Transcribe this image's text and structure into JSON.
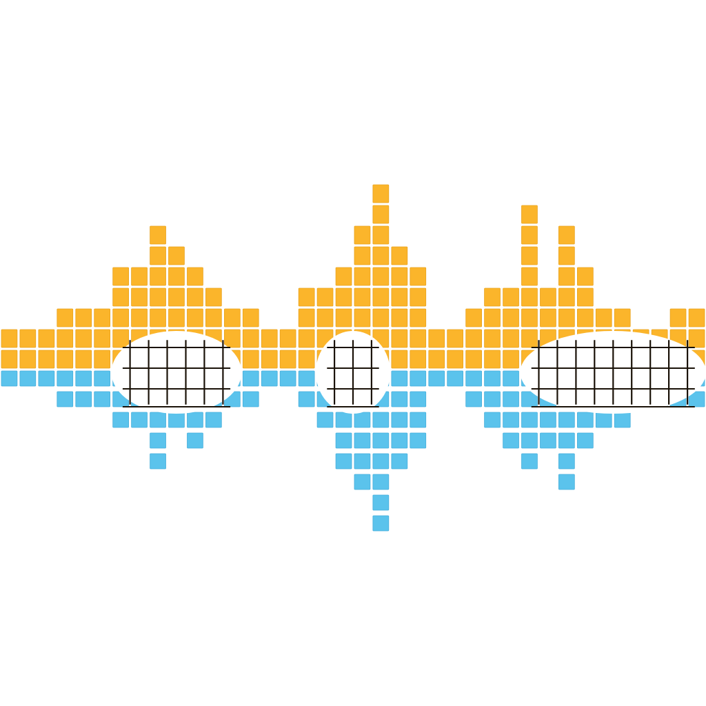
{
  "colors": {
    "background": "#ffffff",
    "upper": "#fbb52b",
    "lower": "#5bc3ec",
    "cell_edge": "#e8a21c",
    "cell_edge_lower": "#46aedb",
    "grid_dark": "#1a1208"
  },
  "waveform": {
    "columns": [
      {
        "up": 2,
        "down": 1
      },
      {
        "up": 2,
        "down": 1
      },
      {
        "up": 2,
        "down": 1
      },
      {
        "up": 3,
        "down": 2
      },
      {
        "up": 3,
        "down": 2
      },
      {
        "up": 3,
        "down": 2
      },
      {
        "up": 5,
        "down": 3
      },
      {
        "up": 5,
        "down": 3
      },
      {
        "up": 7,
        "down": 5
      },
      {
        "up": 6,
        "down": 3
      },
      {
        "up": 5,
        "down": 4
      },
      {
        "up": 4,
        "down": 3
      },
      {
        "up": 3,
        "down": 2
      },
      {
        "up": 3,
        "down": 2
      },
      {
        "up": 2,
        "down": 1
      },
      {
        "up": 2,
        "down": 1
      },
      {
        "up": 4,
        "down": 2
      },
      {
        "up": 4,
        "down": 3
      },
      {
        "up": 5,
        "down": 5
      },
      {
        "up": 7,
        "down": 6
      },
      {
        "up": 9,
        "down": 8
      },
      {
        "up": 6,
        "down": 5
      },
      {
        "up": 5,
        "down": 4
      },
      {
        "up": 2,
        "down": 1
      },
      {
        "up": 2,
        "down": 1
      },
      {
        "up": 3,
        "down": 2
      },
      {
        "up": 4,
        "down": 3
      },
      {
        "up": 4,
        "down": 4
      },
      {
        "up": 8,
        "down": 5
      },
      {
        "up": 4,
        "down": 4
      },
      {
        "up": 7,
        "down": 6
      },
      {
        "up": 5,
        "down": 4
      },
      {
        "up": 3,
        "down": 3
      },
      {
        "up": 3,
        "down": 3
      },
      {
        "up": 2,
        "down": 1
      },
      {
        "up": 2,
        "down": 2
      },
      {
        "up": 3,
        "down": 2
      },
      {
        "up": 3,
        "down": 2
      }
    ],
    "cleared_regions": [
      {
        "from": 6,
        "to": 12
      },
      {
        "from": 17,
        "to": 20
      },
      {
        "from": 28,
        "to": 37
      }
    ]
  }
}
